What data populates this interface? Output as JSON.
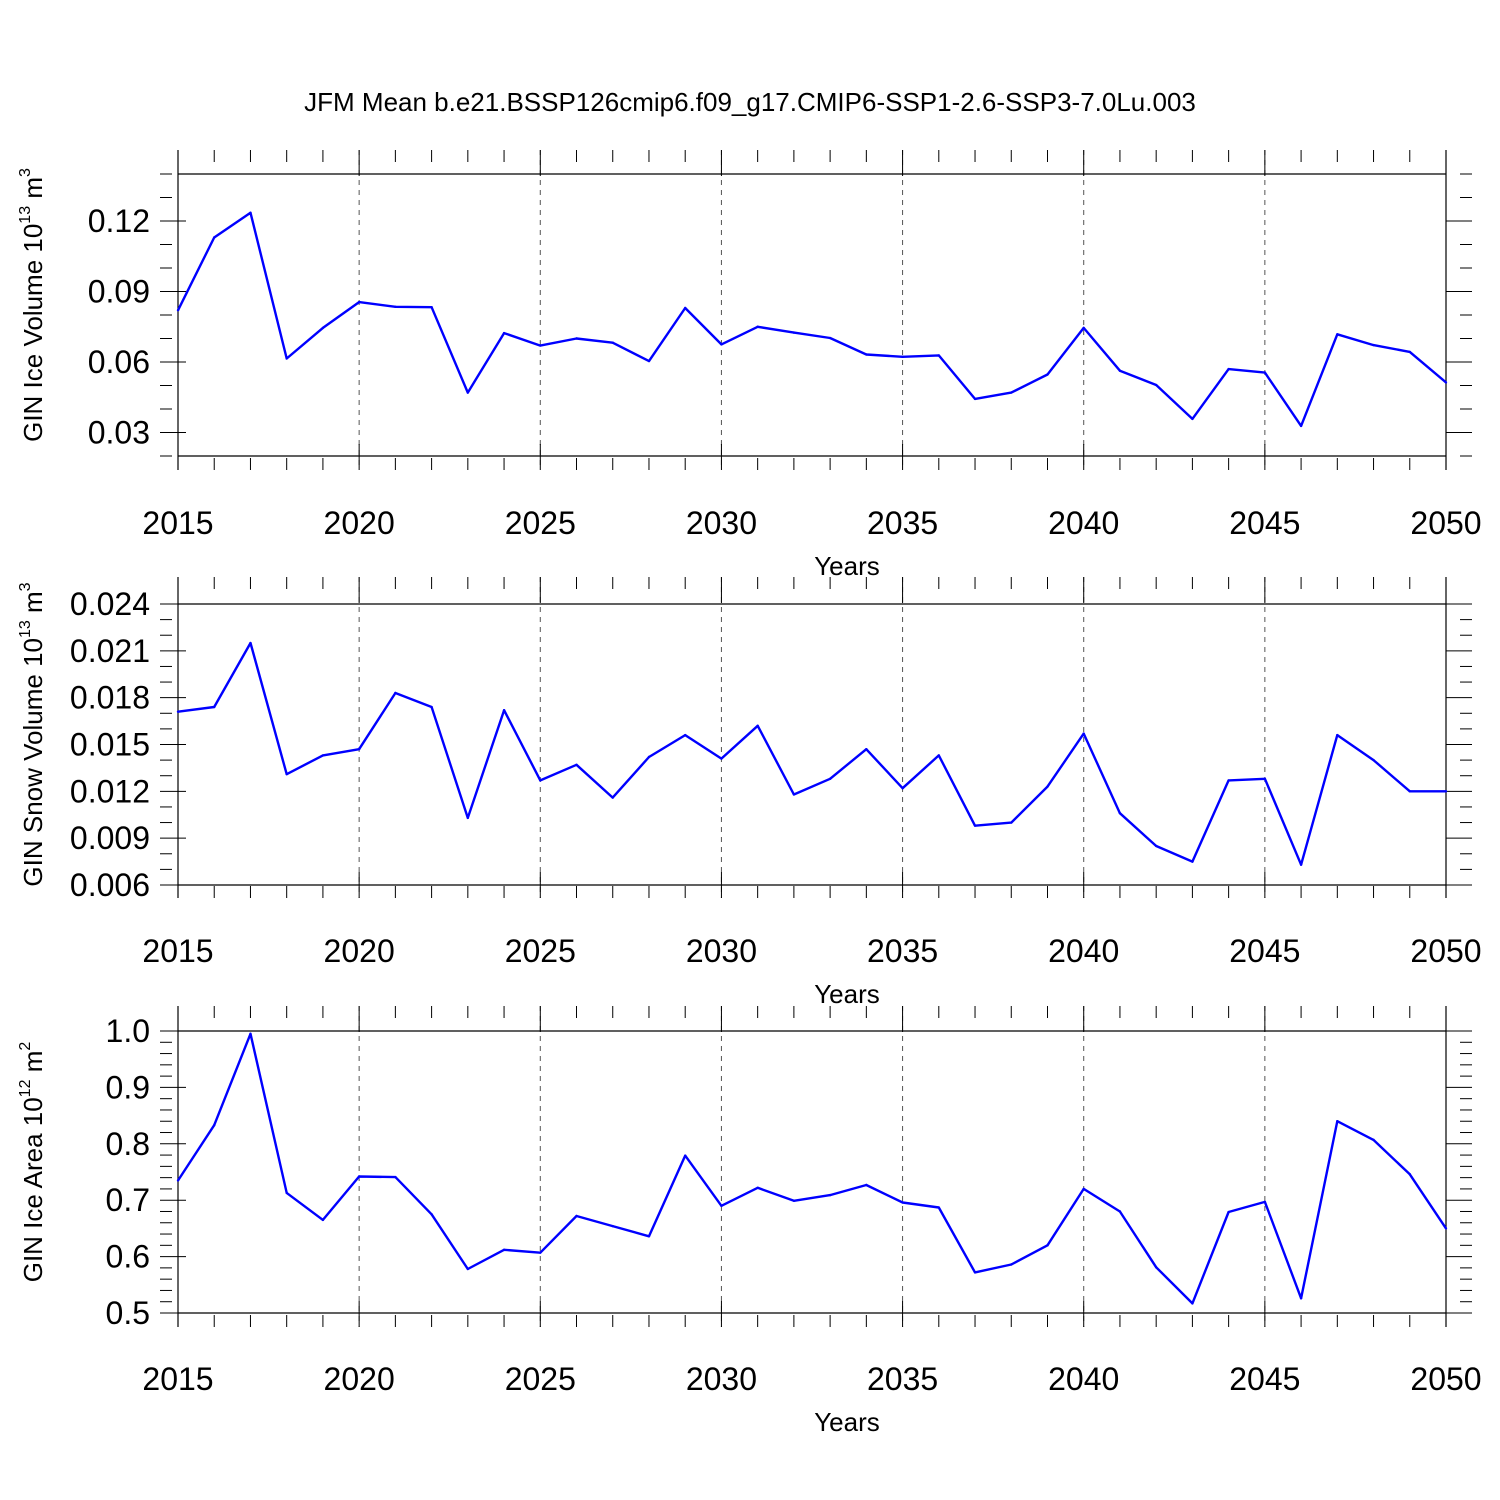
{
  "title": "JFM Mean b.e21.BSSP126cmip6.f09_g17.CMIP6-SSP1-2.6-SSP3-7.0Lu.003",
  "colors": {
    "line": "#0000ff",
    "axis": "#000000",
    "grid": "#555555"
  },
  "chart_data": [
    {
      "type": "line",
      "xlabel": "Years",
      "ylabel": {
        "text": "GIN Ice Volume 10",
        "exp": "13",
        "unit": " m",
        "unit_exp": "3"
      },
      "xlim": [
        2015,
        2050
      ],
      "ylim": [
        0.02,
        0.14
      ],
      "xticks": [
        2015,
        2020,
        2025,
        2030,
        2035,
        2040,
        2045,
        2050
      ],
      "xtick_labels": [
        "2015",
        "2020",
        "2025",
        "2030",
        "2035",
        "2040",
        "2045",
        "2050"
      ],
      "yticks": [
        0.03,
        0.06,
        0.09,
        0.12
      ],
      "ytick_labels": [
        "0.03",
        "0.06",
        "0.09",
        "0.12"
      ],
      "x_minor_step": 1,
      "y_minor_step": 0.01,
      "grid": "vertical dashed at major x ticks",
      "x": [
        2015,
        2016,
        2017,
        2018,
        2019,
        2020,
        2021,
        2022,
        2023,
        2024,
        2025,
        2026,
        2027,
        2028,
        2029,
        2030,
        2031,
        2032,
        2033,
        2034,
        2035,
        2036,
        2037,
        2038,
        2039,
        2040,
        2041,
        2042,
        2043,
        2044,
        2045,
        2046,
        2047,
        2048,
        2049,
        2050
      ],
      "values": [
        0.082,
        0.113,
        0.1235,
        0.0615,
        0.0745,
        0.0855,
        0.0835,
        0.0833,
        0.047,
        0.0723,
        0.067,
        0.07,
        0.0682,
        0.0604,
        0.083,
        0.0675,
        0.075,
        0.0725,
        0.0702,
        0.0632,
        0.0622,
        0.0628,
        0.0443,
        0.047,
        0.0547,
        0.0745,
        0.0563,
        0.0502,
        0.0358,
        0.057,
        0.0555,
        0.0328,
        0.0718,
        0.0672,
        0.0643,
        0.0513
      ]
    },
    {
      "type": "line",
      "xlabel": "Years",
      "ylabel": {
        "text": "GIN Snow Volume 10",
        "exp": "13",
        "unit": " m",
        "unit_exp": "3"
      },
      "xlim": [
        2015,
        2050
      ],
      "ylim": [
        0.006,
        0.0257
      ],
      "xticks": [
        2015,
        2020,
        2025,
        2030,
        2035,
        2040,
        2045,
        2050
      ],
      "xtick_labels": [
        "2015",
        "2020",
        "2025",
        "2030",
        "2035",
        "2040",
        "2045",
        "2050"
      ],
      "yticks": [
        0.006,
        0.009,
        0.012,
        0.015,
        0.018,
        0.021,
        0.024
      ],
      "ytick_labels": [
        "0.006",
        "0.009",
        "0.012",
        "0.015",
        "0.018",
        "0.021",
        "0.024"
      ],
      "x_minor_step": 1,
      "y_minor_step": 0.001,
      "grid": "vertical dashed at major x ticks",
      "x": [
        2015,
        2016,
        2017,
        2018,
        2019,
        2020,
        2021,
        2022,
        2023,
        2024,
        2025,
        2026,
        2027,
        2028,
        2029,
        2030,
        2031,
        2032,
        2033,
        2034,
        2035,
        2036,
        2037,
        2038,
        2039,
        2040,
        2041,
        2042,
        2043,
        2044,
        2045,
        2046,
        2047,
        2048,
        2049,
        2050
      ],
      "values": [
        0.0171,
        0.0174,
        0.0215,
        0.0131,
        0.0143,
        0.0147,
        0.0183,
        0.0174,
        0.0103,
        0.0172,
        0.0127,
        0.0137,
        0.0116,
        0.0142,
        0.0156,
        0.0141,
        0.0162,
        0.0118,
        0.0128,
        0.0147,
        0.0122,
        0.0143,
        0.0098,
        0.01,
        0.0123,
        0.0157,
        0.0106,
        0.0085,
        0.0075,
        0.0127,
        0.0128,
        0.0073,
        0.0156,
        0.014,
        0.012,
        0.012
      ]
    },
    {
      "type": "line",
      "xlabel": "Years",
      "ylabel": {
        "text": "GIN Ice Area 10",
        "exp": "12",
        "unit": " m",
        "unit_exp": "2"
      },
      "xlim": [
        2015,
        2050
      ],
      "ylim": [
        0.5,
        1.05
      ],
      "xticks": [
        2015,
        2020,
        2025,
        2030,
        2035,
        2040,
        2045,
        2050
      ],
      "xtick_labels": [
        "2015",
        "2020",
        "2025",
        "2030",
        "2035",
        "2040",
        "2045",
        "2050"
      ],
      "yticks": [
        0.5,
        0.6,
        0.7,
        0.8,
        0.9,
        1.0
      ],
      "ytick_labels": [
        "0.5",
        "0.6",
        "0.7",
        "0.8",
        "0.9",
        "1.0"
      ],
      "x_minor_step": 1,
      "y_minor_step": 0.02,
      "grid": "vertical dashed at major x ticks",
      "x": [
        2015,
        2016,
        2017,
        2018,
        2019,
        2020,
        2021,
        2022,
        2023,
        2024,
        2025,
        2026,
        2027,
        2028,
        2029,
        2030,
        2031,
        2032,
        2033,
        2034,
        2035,
        2036,
        2037,
        2038,
        2039,
        2040,
        2041,
        2042,
        2043,
        2044,
        2045,
        2046,
        2047,
        2048,
        2049,
        2050
      ],
      "values": [
        0.735,
        0.833,
        0.995,
        0.713,
        0.665,
        0.742,
        0.741,
        0.675,
        0.578,
        0.612,
        0.607,
        0.672,
        0.654,
        0.636,
        0.779,
        0.69,
        0.722,
        0.699,
        0.709,
        0.727,
        0.696,
        0.687,
        0.572,
        0.586,
        0.62,
        0.72,
        0.68,
        0.581,
        0.517,
        0.679,
        0.697,
        0.526,
        0.84,
        0.807,
        0.746,
        0.65
      ]
    }
  ]
}
